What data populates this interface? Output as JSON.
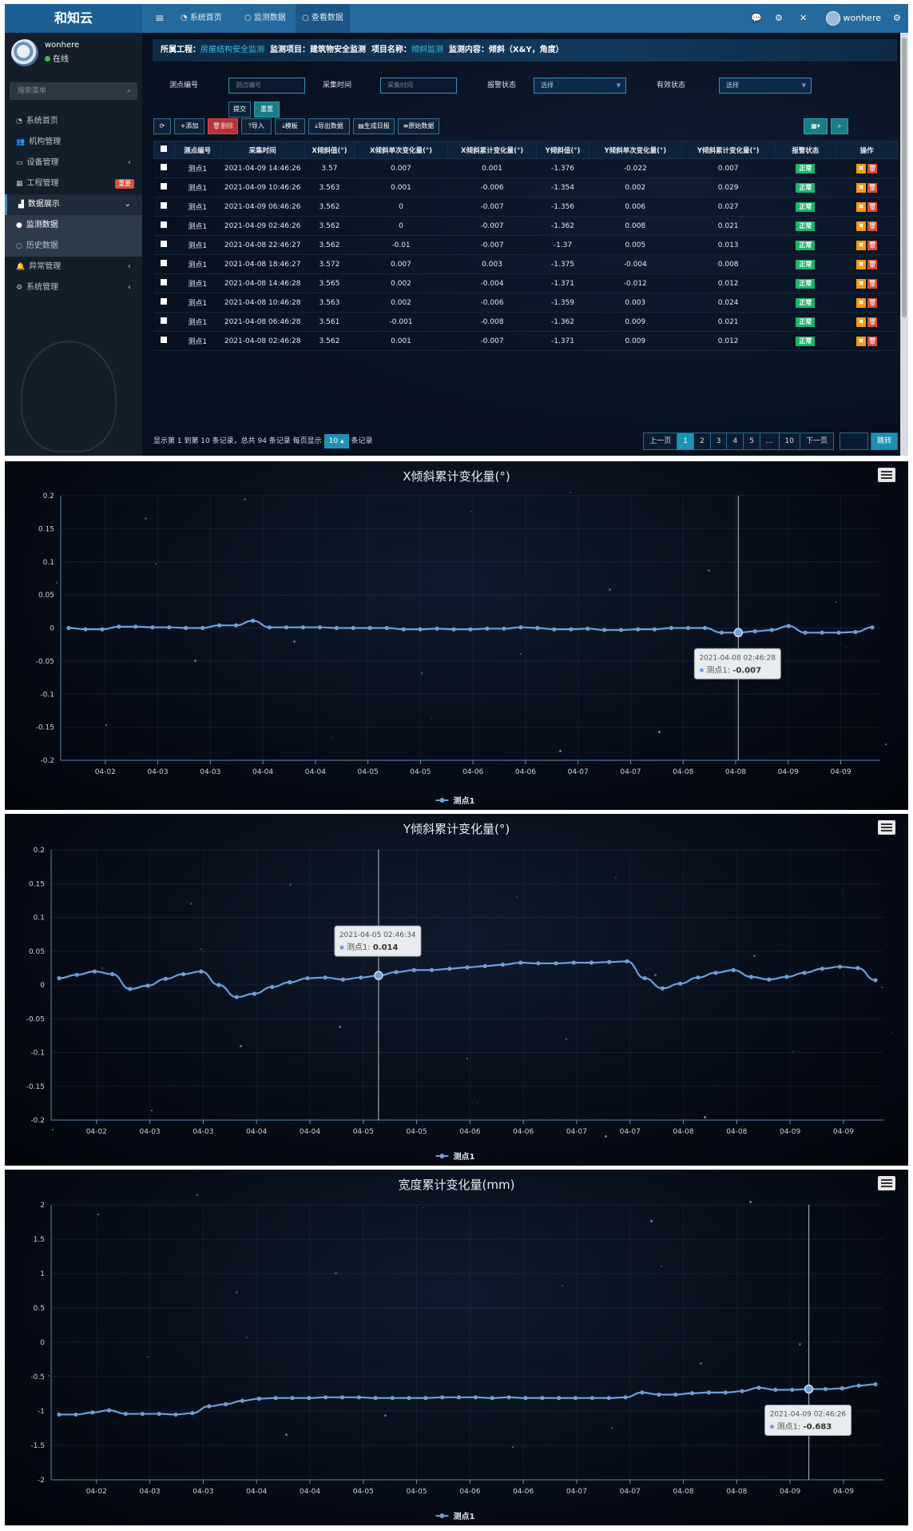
{
  "topbar": {
    "brand": "和知云",
    "menu_icon": "hamburger-icon",
    "nav": [
      {
        "label": "系统首页",
        "icon": "dashboard-icon"
      },
      {
        "label": "监测数据",
        "icon": "circle-icon"
      },
      {
        "label": "查看数据",
        "icon": "circle-icon"
      }
    ],
    "username": "wonhere"
  },
  "sidebar": {
    "user": "wonhere",
    "status": "在线",
    "search_placeholder": "搜索菜单",
    "items": [
      {
        "label": "系统首页",
        "icon": "dashboard-icon"
      },
      {
        "label": "机构管理",
        "icon": "users-icon"
      },
      {
        "label": "设备管理",
        "icon": "hdd-icon",
        "arrow": "‹"
      },
      {
        "label": "工程管理",
        "icon": "grid-icon",
        "badge": "重要"
      },
      {
        "label": "数据展示",
        "icon": "bar-chart-icon",
        "arrow": "⌄"
      },
      {
        "label": "监测数据",
        "icon": "circle-icon"
      },
      {
        "label": "历史数据",
        "icon": "circle-icon"
      },
      {
        "label": "异常管理",
        "icon": "bell-icon",
        "arrow": "‹"
      },
      {
        "label": "系统管理",
        "icon": "gears-icon",
        "arrow": "‹"
      }
    ]
  },
  "crumb": {
    "p1": "所属工程：",
    "v1": "房屋结构安全监测",
    "p2": "监测项目：建筑物安全监测",
    "p3": "项目名称：",
    "v3": "倾斜监测",
    "p4": "监测内容：倾斜（X&Y，角度）"
  },
  "filters": {
    "point_label": "测点编号",
    "point_placeholder": "测点编号",
    "time_label": "采集时间",
    "time_placeholder": "采集时间",
    "alarm_label": "报警状态",
    "alarm_value": "选择",
    "valid_label": "有效状态",
    "valid_value": "选择",
    "submit": "提交",
    "reset": "重置"
  },
  "toolbar": {
    "refresh_icon": "refresh-icon",
    "add": "添加",
    "delete": "删除",
    "import": "导入",
    "template": "模板",
    "export": "导出数据",
    "report": "生成日报",
    "raw": "原始数据"
  },
  "table": {
    "headers": [
      "测点编号",
      "采集时间",
      "X倾斜值(°)",
      "X倾斜单次变化量(°)",
      "X倾斜累计变化量(°)",
      "Y倾斜值(°)",
      "Y倾斜单次变化量(°)",
      "Y倾斜累计变化量(°)",
      "报警状态",
      "操作"
    ],
    "rows": [
      [
        "测点1",
        "2021-04-09 14:46:26",
        "3.57",
        "0.007",
        "0.001",
        "-1.376",
        "-0.022",
        "0.007",
        "正常"
      ],
      [
        "测点1",
        "2021-04-09 10:46:26",
        "3.563",
        "0.001",
        "-0.006",
        "-1.354",
        "0.002",
        "0.029",
        "正常"
      ],
      [
        "测点1",
        "2021-04-09 06:46:26",
        "3.562",
        "0",
        "-0.007",
        "-1.356",
        "0.006",
        "0.027",
        "正常"
      ],
      [
        "测点1",
        "2021-04-09 02:46:26",
        "3.562",
        "0",
        "-0.007",
        "-1.362",
        "0.008",
        "0.021",
        "正常"
      ],
      [
        "测点1",
        "2021-04-08 22:46:27",
        "3.562",
        "-0.01",
        "-0.007",
        "-1.37",
        "0.005",
        "0.013",
        "正常"
      ],
      [
        "测点1",
        "2021-04-08 18:46:27",
        "3.572",
        "0.007",
        "0.003",
        "-1.375",
        "-0.004",
        "0.008",
        "正常"
      ],
      [
        "测点1",
        "2021-04-08 14:46:28",
        "3.565",
        "0.002",
        "-0.004",
        "-1.371",
        "-0.012",
        "0.012",
        "正常"
      ],
      [
        "测点1",
        "2021-04-08 10:46:28",
        "3.563",
        "0.002",
        "-0.006",
        "-1.359",
        "0.003",
        "0.024",
        "正常"
      ],
      [
        "测点1",
        "2021-04-08 06:46:28",
        "3.561",
        "-0.001",
        "-0.008",
        "-1.362",
        "0.009",
        "0.021",
        "正常"
      ],
      [
        "测点1",
        "2021-04-08 02:46:28",
        "3.562",
        "0.001",
        "-0.007",
        "-1.371",
        "0.009",
        "0.012",
        "正常"
      ]
    ]
  },
  "pagination": {
    "info_pre": "显示第 1 到第 10 条记录，总共 94 条记录 每页显示",
    "page_size": "10",
    "info_post": "条记录",
    "prev": "上一页",
    "next": "下一页",
    "jump": "跳转",
    "pages": [
      "1",
      "2",
      "3",
      "4",
      "5",
      "...",
      "10"
    ]
  },
  "chart_data": [
    {
      "type": "line",
      "title": "X倾斜累计变化量(°)",
      "ylim": [
        -0.2,
        0.2
      ],
      "yticks": [
        "0.2",
        "0.15",
        "0.1",
        "0.05",
        "0",
        "-0.05",
        "-0.1",
        "-0.15",
        "-0.2"
      ],
      "xticks": [
        "04-02",
        "04-03",
        "04-03",
        "04-04",
        "04-04",
        "04-05",
        "04-05",
        "04-06",
        "04-06",
        "04-07",
        "04-07",
        "04-08",
        "04-08",
        "04-09",
        "04-09"
      ],
      "series": [
        {
          "name": "测点1",
          "values": [
            0.0,
            -0.002,
            -0.002,
            0.002,
            0.002,
            0.001,
            0.001,
            0.0,
            0.0,
            0.004,
            0.004,
            0.011,
            0.001,
            0.001,
            0.001,
            0.001,
            0.0,
            0.0,
            0.0,
            0.0,
            -0.002,
            -0.002,
            -0.001,
            -0.002,
            -0.002,
            -0.001,
            -0.001,
            0.001,
            0.0,
            -0.002,
            -0.002,
            -0.001,
            -0.003,
            -0.003,
            -0.002,
            -0.002,
            0.0,
            0.0,
            0.0,
            -0.007,
            -0.007,
            -0.005,
            -0.003,
            0.003,
            -0.007,
            -0.007,
            -0.007,
            -0.006,
            0.001
          ]
        }
      ],
      "tooltip": {
        "time": "2021-04-08 02:46:28",
        "label": "测点1:",
        "value": "-0.007",
        "index": 40
      }
    },
    {
      "type": "line",
      "title": "Y倾斜累计变化量(°)",
      "ylim": [
        -0.2,
        0.2
      ],
      "yticks": [
        "0.2",
        "0.15",
        "0.1",
        "0.05",
        "0",
        "-0.05",
        "-0.1",
        "-0.15",
        "-0.2"
      ],
      "xticks": [
        "04-02",
        "04-03",
        "04-03",
        "04-04",
        "04-04",
        "04-05",
        "04-05",
        "04-06",
        "04-06",
        "04-07",
        "04-07",
        "04-08",
        "04-08",
        "04-09",
        "04-09"
      ],
      "series": [
        {
          "name": "测点1",
          "values": [
            0.01,
            0.015,
            0.02,
            0.016,
            -0.006,
            -0.001,
            0.009,
            0.016,
            0.02,
            0.0,
            -0.018,
            -0.013,
            -0.003,
            0.004,
            0.01,
            0.011,
            0.008,
            0.011,
            0.014,
            0.019,
            0.022,
            0.022,
            0.024,
            0.026,
            0.028,
            0.03,
            0.033,
            0.032,
            0.032,
            0.033,
            0.033,
            0.034,
            0.035,
            0.01,
            -0.005,
            0.002,
            0.011,
            0.018,
            0.022,
            0.012,
            0.008,
            0.012,
            0.018,
            0.024,
            0.027,
            0.025,
            0.007
          ]
        }
      ],
      "tooltip": {
        "time": "2021-04-05 02:46:34",
        "label": "测点1:",
        "value": "0.014",
        "index": 18
      }
    },
    {
      "type": "line",
      "title": "宽度累计变化量(mm)",
      "ylim": [
        -2,
        2
      ],
      "yticks": [
        "2",
        "1.5",
        "1",
        "0.5",
        "0",
        "-0.5",
        "-1",
        "-1.5",
        "-2"
      ],
      "xticks": [
        "04-02",
        "04-03",
        "04-03",
        "04-04",
        "04-04",
        "04-05",
        "04-05",
        "04-06",
        "04-06",
        "04-07",
        "04-07",
        "04-08",
        "04-08",
        "04-09",
        "04-09"
      ],
      "series": [
        {
          "name": "测点1",
          "values": [
            -1.05,
            -1.05,
            -1.02,
            -0.99,
            -1.04,
            -1.04,
            -1.04,
            -1.05,
            -1.03,
            -0.93,
            -0.9,
            -0.85,
            -0.82,
            -0.81,
            -0.81,
            -0.81,
            -0.8,
            -0.8,
            -0.8,
            -0.81,
            -0.81,
            -0.81,
            -0.81,
            -0.8,
            -0.8,
            -0.8,
            -0.81,
            -0.8,
            -0.81,
            -0.81,
            -0.81,
            -0.81,
            -0.81,
            -0.81,
            -0.8,
            -0.73,
            -0.76,
            -0.76,
            -0.74,
            -0.73,
            -0.73,
            -0.71,
            -0.66,
            -0.69,
            -0.69,
            -0.68,
            -0.68,
            -0.67,
            -0.63,
            -0.61
          ]
        }
      ],
      "tooltip": {
        "time": "2021-04-09 02:46:26",
        "label": "测点1:",
        "value": "-0.683",
        "index": 45
      }
    }
  ],
  "colors": {
    "line": "#6f9fd8",
    "ok": "#18b76c",
    "accent": "#1a93b7"
  }
}
